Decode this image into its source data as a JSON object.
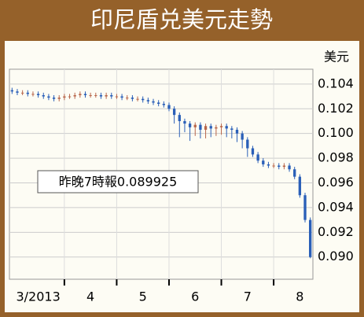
{
  "chart_data": {
    "type": "candlestick",
    "title": "印尼盾兑美元走勢",
    "y_unit": "美元",
    "annotation": "昨晚7時報0.089925",
    "categories": [
      null,
      null,
      null,
      null,
      null,
      null,
      null,
      null,
      null,
      null,
      null,
      null,
      null,
      null,
      null,
      null,
      null,
      null,
      null,
      null,
      null,
      null,
      null,
      null,
      null,
      null,
      null,
      null,
      null,
      null,
      null,
      null,
      null,
      null,
      null,
      null,
      null,
      null,
      null,
      null,
      null,
      null,
      null,
      null,
      null,
      null,
      null,
      null,
      null,
      null,
      null,
      null,
      null,
      null,
      null,
      null,
      null,
      null
    ],
    "open": [
      0.1035,
      0.1034,
      0.1033,
      0.1033,
      0.1032,
      0.1032,
      0.1031,
      0.103,
      0.1029,
      0.1028,
      0.1029,
      0.103,
      0.103,
      0.1031,
      0.1032,
      0.1031,
      0.1031,
      0.1031,
      0.103,
      0.1031,
      0.103,
      0.103,
      0.1029,
      0.1029,
      0.1028,
      0.1028,
      0.1027,
      0.1026,
      0.1025,
      0.1024,
      0.1023,
      0.102,
      0.1015,
      0.101,
      0.1008,
      0.1005,
      0.1007,
      0.1003,
      0.1006,
      0.1004,
      0.1005,
      0.1006,
      0.1004,
      0.1003,
      0.1,
      0.0995,
      0.0988,
      0.0983,
      0.0978,
      0.0975,
      0.0974,
      0.0974,
      0.0973,
      0.0974,
      0.0971,
      0.0965,
      0.095,
      0.093
    ],
    "high": [
      0.1037,
      0.1036,
      0.1035,
      0.1035,
      0.1034,
      0.1034,
      0.1033,
      0.1032,
      0.1031,
      0.1031,
      0.1032,
      0.1032,
      0.1033,
      0.1034,
      0.1034,
      0.1033,
      0.1033,
      0.1033,
      0.1033,
      0.1033,
      0.1032,
      0.1032,
      0.1031,
      0.1031,
      0.103,
      0.103,
      0.1029,
      0.1028,
      0.1027,
      0.1026,
      0.1025,
      0.1022,
      0.1017,
      0.1012,
      0.101,
      0.1009,
      0.1009,
      0.1008,
      0.1008,
      0.1007,
      0.1008,
      0.1008,
      0.1006,
      0.1005,
      0.1002,
      0.0997,
      0.099,
      0.0985,
      0.098,
      0.0977,
      0.0976,
      0.0976,
      0.0976,
      0.0976,
      0.0973,
      0.0967,
      0.0952,
      0.0932
    ],
    "low": [
      0.1032,
      0.1031,
      0.1031,
      0.103,
      0.103,
      0.1029,
      0.1028,
      0.1027,
      0.1026,
      0.1026,
      0.1027,
      0.1028,
      0.1028,
      0.1029,
      0.1029,
      0.1029,
      0.1029,
      0.1028,
      0.1028,
      0.1028,
      0.1028,
      0.1027,
      0.1027,
      0.1026,
      0.1026,
      0.1025,
      0.1024,
      0.1023,
      0.1022,
      0.1021,
      0.1018,
      0.1008,
      0.0997,
      0.1001,
      0.0994,
      0.0998,
      0.0996,
      0.0996,
      0.0997,
      0.0998,
      0.0999,
      0.0997,
      0.0996,
      0.0993,
      0.0988,
      0.0981,
      0.0981,
      0.0976,
      0.0973,
      0.0972,
      0.0972,
      0.0971,
      0.0971,
      0.0969,
      0.0963,
      0.0948,
      0.0928,
      0.0899
    ],
    "close": [
      0.1034,
      0.1033,
      0.1033,
      0.1032,
      0.1032,
      0.1031,
      0.103,
      0.1029,
      0.1028,
      0.1029,
      0.103,
      0.103,
      0.1031,
      0.1032,
      0.1031,
      0.1031,
      0.1031,
      0.103,
      0.1031,
      0.103,
      0.103,
      0.1029,
      0.1029,
      0.1028,
      0.1028,
      0.1027,
      0.1026,
      0.1025,
      0.1024,
      0.1023,
      0.102,
      0.1015,
      0.101,
      0.1008,
      0.1005,
      0.1007,
      0.1003,
      0.1006,
      0.1004,
      0.1005,
      0.1006,
      0.1004,
      0.1003,
      0.1,
      0.0995,
      0.0988,
      0.0983,
      0.0978,
      0.0975,
      0.0974,
      0.0974,
      0.0973,
      0.0974,
      0.0971,
      0.0965,
      0.095,
      0.093,
      0.09
    ],
    "up_color": "#b8664a",
    "down_color": "#2a5fb8",
    "ylim": [
      0.0882,
      0.1052
    ],
    "yticks": [
      {
        "value": 0.09,
        "label": "0.090"
      },
      0.092,
      0.094,
      0.096,
      0.098,
      {
        "value": 0.1,
        "label": "0.100"
      },
      0.102,
      0.104
    ],
    "xticks": [
      {
        "value": 5,
        "label": "3/2013"
      },
      {
        "value": 15,
        "label": "4"
      },
      {
        "value": 25,
        "label": "5"
      },
      {
        "value": 35,
        "label": "6"
      },
      {
        "value": 45,
        "label": "7"
      },
      {
        "value": 55,
        "label": "8"
      }
    ],
    "grid": true
  }
}
